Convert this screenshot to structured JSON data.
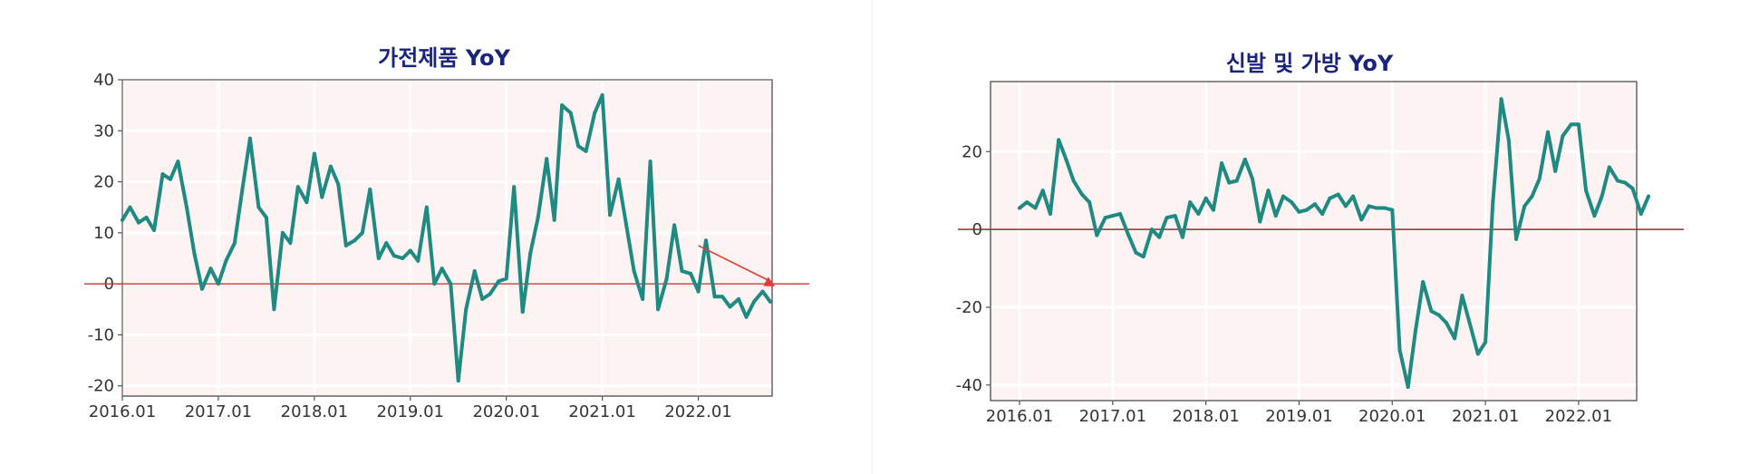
{
  "chart_data": [
    {
      "type": "line",
      "title": "가전제품 YoY",
      "xlabel": "",
      "ylabel": "",
      "x_tick_labels": [
        "2016.01",
        "2017.01",
        "2018.01",
        "2019.01",
        "2020.01",
        "2021.01",
        "2022.01"
      ],
      "y_ticks": [
        40,
        30,
        20,
        10,
        0,
        -10,
        -20
      ],
      "ylim": [
        -22,
        40
      ],
      "reference_line": 0,
      "grid": true,
      "colors": {
        "line": "#1f8a82",
        "reference": "#c0392b",
        "plot_bg": "#fdf3f3",
        "arrow": "#e53935"
      },
      "annotation": {
        "type": "arrow",
        "from": {
          "x": 2022.0,
          "y": 7.5
        },
        "to": {
          "x": 2022.8,
          "y": -0.5
        }
      },
      "series": [
        {
          "x": [
            2016.0,
            2016.08,
            2016.17,
            2016.25,
            2016.33,
            2016.42,
            2016.5,
            2016.58,
            2016.67,
            2016.75,
            2016.83,
            2016.92,
            2017.0,
            2017.08,
            2017.17,
            2017.25,
            2017.33,
            2017.42,
            2017.5,
            2017.58,
            2017.67,
            2017.75,
            2017.83,
            2017.92,
            2018.0,
            2018.08,
            2018.17,
            2018.25,
            2018.33,
            2018.42,
            2018.5,
            2018.58,
            2018.67,
            2018.75,
            2018.83,
            2018.92,
            2019.0,
            2019.08,
            2019.17,
            2019.25,
            2019.33,
            2019.42,
            2019.5,
            2019.58,
            2019.67,
            2019.75,
            2019.83,
            2019.92,
            2020.0,
            2020.08,
            2020.17,
            2020.25,
            2020.33,
            2020.42,
            2020.5,
            2020.58,
            2020.67,
            2020.75,
            2020.83,
            2020.92,
            2021.0,
            2021.08,
            2021.17,
            2021.25,
            2021.33,
            2021.42,
            2021.5,
            2021.58,
            2021.67,
            2021.75,
            2021.83,
            2021.92,
            2022.0,
            2022.08,
            2022.17,
            2022.25,
            2022.33,
            2022.42,
            2022.5,
            2022.58,
            2022.67,
            2022.75
          ],
          "values": [
            12.5,
            15,
            12,
            13,
            10.5,
            21.5,
            20.5,
            24,
            15,
            6,
            -1,
            3,
            0,
            4.5,
            8,
            18.5,
            28.5,
            15,
            13,
            -5,
            10,
            8,
            19,
            16,
            25.5,
            17,
            23,
            19.5,
            7.5,
            8.5,
            10,
            18.5,
            5,
            8,
            5.5,
            5,
            6.5,
            4.5,
            15,
            0,
            3,
            0,
            -19,
            -5,
            2.5,
            -3,
            -2,
            0.5,
            1,
            19,
            -5.5,
            6,
            13,
            24.5,
            12.5,
            35,
            33.5,
            27,
            26,
            33.5,
            37,
            13.5,
            20.5,
            11.5,
            2.5,
            -3,
            24,
            -5,
            1,
            11.5,
            2.5,
            2,
            -1.5,
            8.5,
            -2.5,
            -2.5,
            -4.5,
            -3,
            -6.5,
            -3.5,
            -1.5,
            -3.5
          ]
        }
      ]
    },
    {
      "type": "line",
      "title": "신발 및 가방 YoY",
      "xlabel": "",
      "ylabel": "",
      "x_tick_labels": [
        "2016.01",
        "2017.01",
        "2018.01",
        "2019.01",
        "2020.01",
        "2021.01",
        "2022.01"
      ],
      "y_ticks": [
        20,
        0,
        -20,
        -40
      ],
      "ylim": [
        -44,
        38
      ],
      "reference_line": 0,
      "grid": true,
      "colors": {
        "line": "#1f8a82",
        "reference": "#8b2e2e",
        "plot_bg": "#fdf3f3"
      },
      "series": [
        {
          "x": [
            2016.0,
            2016.08,
            2016.17,
            2016.25,
            2016.33,
            2016.42,
            2016.5,
            2016.58,
            2016.67,
            2016.75,
            2016.83,
            2016.92,
            2017.0,
            2017.08,
            2017.17,
            2017.25,
            2017.33,
            2017.42,
            2017.5,
            2017.58,
            2017.67,
            2017.75,
            2017.83,
            2017.92,
            2018.0,
            2018.08,
            2018.17,
            2018.25,
            2018.33,
            2018.42,
            2018.5,
            2018.58,
            2018.67,
            2018.75,
            2018.83,
            2018.92,
            2019.0,
            2019.08,
            2019.17,
            2019.25,
            2019.33,
            2019.42,
            2019.5,
            2019.58,
            2019.67,
            2019.75,
            2019.83,
            2019.92,
            2020.0,
            2020.08,
            2020.17,
            2020.25,
            2020.33,
            2020.42,
            2020.5,
            2020.58,
            2020.67,
            2020.75,
            2020.83,
            2020.92,
            2021.0,
            2021.08,
            2021.17,
            2021.25,
            2021.33,
            2021.42,
            2021.5,
            2021.58,
            2021.67,
            2021.75,
            2021.83,
            2021.92,
            2022.0,
            2022.08,
            2022.17,
            2022.25,
            2022.33,
            2022.42,
            2022.5,
            2022.58,
            2022.67,
            2022.75
          ],
          "values": [
            5.5,
            7,
            5.5,
            10,
            4,
            23,
            18,
            12.5,
            9,
            7,
            -1.5,
            3,
            3.5,
            4,
            -1.5,
            -6,
            -7,
            0,
            -2,
            3,
            3.5,
            -2,
            7,
            4,
            8,
            5,
            17,
            12,
            12.5,
            18,
            13,
            2,
            10,
            3.5,
            8.5,
            7,
            4.5,
            5,
            6.5,
            4,
            8,
            9,
            6,
            8.5,
            2.5,
            6,
            5.5,
            5.5,
            5,
            -31,
            -40.5,
            -26,
            -13.5,
            -21,
            -22,
            -24,
            -28,
            -17,
            -24,
            -32,
            -29,
            7,
            33.5,
            23,
            -2.5,
            6,
            8.5,
            13,
            25,
            15,
            24,
            27,
            27,
            10,
            3.5,
            8.5,
            16,
            12.5,
            12,
            10.5,
            4,
            8.5
          ]
        }
      ]
    }
  ]
}
